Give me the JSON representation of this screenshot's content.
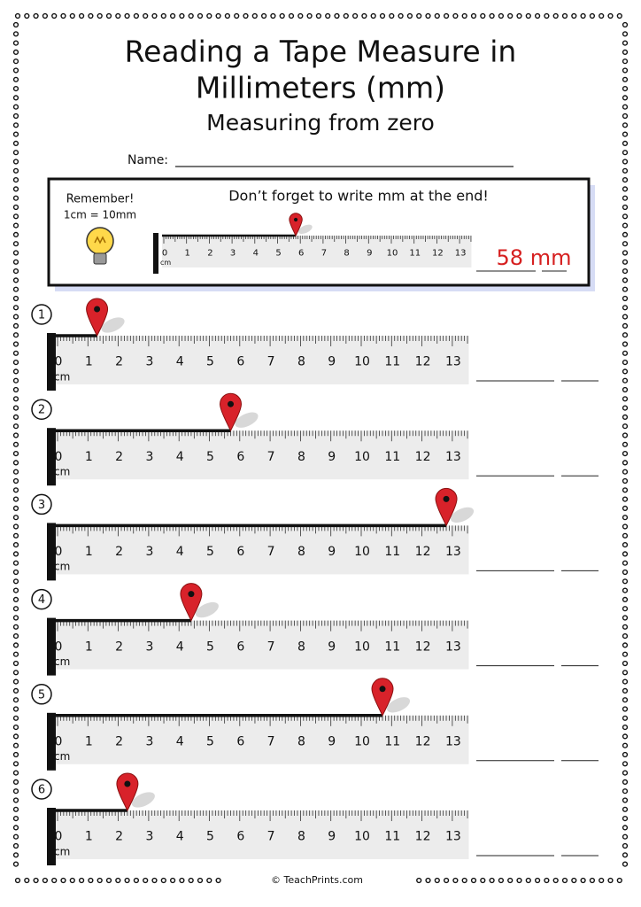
{
  "title_lines": [
    "Reading a Tape Measure in",
    "Millimeters (mm)"
  ],
  "subtitle": "Measuring from zero",
  "name_label": "Name:",
  "reminder": {
    "heading": "Remember!",
    "rule": "1cm = 10mm",
    "tip": "Don’t forget to write mm at the end!",
    "example_answer": "58 mm",
    "example_pin_mm": 58
  },
  "ruler": {
    "labels": [
      "0",
      "1",
      "2",
      "3",
      "4",
      "5",
      "6",
      "7",
      "8",
      "9",
      "10",
      "11",
      "12",
      "13"
    ],
    "unit": "cm"
  },
  "problems": [
    {
      "number": "1",
      "pin_mm": 13
    },
    {
      "number": "2",
      "pin_mm": 57
    },
    {
      "number": "3",
      "pin_mm": 128
    },
    {
      "number": "4",
      "pin_mm": 44
    },
    {
      "number": "5",
      "pin_mm": 107
    },
    {
      "number": "6",
      "pin_mm": 23
    }
  ],
  "footer": "© TeachPrints.com"
}
